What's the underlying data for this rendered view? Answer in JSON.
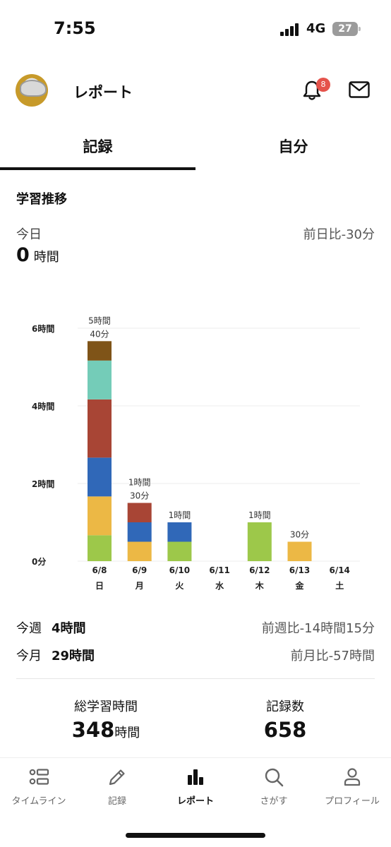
{
  "status_bar": {
    "time": "7:55",
    "network": "4G",
    "battery": "27"
  },
  "header": {
    "title": "レポート",
    "notification_count": "8"
  },
  "tabs": [
    {
      "label": "記録",
      "active": true
    },
    {
      "label": "自分",
      "active": false
    }
  ],
  "section": {
    "title": "学習推移",
    "today_label": "今日",
    "today_value": "0",
    "today_unit": "時間",
    "today_compare": "前日比-30分"
  },
  "chart_data": {
    "type": "bar",
    "stacked": true,
    "unit": "minutes",
    "ylim": [
      0,
      360
    ],
    "y_ticks": [
      {
        "value": 0,
        "label": "0分"
      },
      {
        "value": 120,
        "label": "2時間"
      },
      {
        "value": 240,
        "label": "4時間"
      },
      {
        "value": 360,
        "label": "6時間"
      }
    ],
    "grid": true,
    "categories": [
      {
        "date": "6/8",
        "day": "日"
      },
      {
        "date": "6/9",
        "day": "月"
      },
      {
        "date": "6/10",
        "day": "火"
      },
      {
        "date": "6/11",
        "day": "水"
      },
      {
        "date": "6/12",
        "day": "木"
      },
      {
        "date": "6/13",
        "day": "金"
      },
      {
        "date": "6/14",
        "day": "土"
      }
    ],
    "series": [
      {
        "color": "#9dc84a",
        "values": [
          40,
          0,
          30,
          0,
          60,
          0,
          0
        ]
      },
      {
        "color": "#ecb845",
        "values": [
          60,
          30,
          0,
          0,
          0,
          30,
          0
        ]
      },
      {
        "color": "#3068b8",
        "values": [
          60,
          30,
          30,
          0,
          0,
          0,
          0
        ]
      },
      {
        "color": "#a84535",
        "values": [
          90,
          30,
          0,
          0,
          0,
          0,
          0
        ]
      },
      {
        "color": "#74ccb8",
        "values": [
          60,
          0,
          0,
          0,
          0,
          0,
          0
        ]
      },
      {
        "color": "#7f5418",
        "values": [
          30,
          0,
          0,
          0,
          0,
          0,
          0
        ]
      }
    ],
    "totals": [
      [
        "5時間",
        "40分"
      ],
      [
        "1時間",
        "30分"
      ],
      [
        "1時間"
      ],
      [],
      [
        "1時間"
      ],
      [
        "30分"
      ],
      []
    ]
  },
  "summary": {
    "week_label": "今週",
    "week_value": "4時間",
    "week_compare": "前週比-14時間15分",
    "month_label": "今月",
    "month_value": "29時間",
    "month_compare": "前月比-57時間"
  },
  "totals": {
    "study_label": "総学習時間",
    "study_value": "348",
    "study_unit": "時間",
    "records_label": "記録数",
    "records_value": "658"
  },
  "bottom_nav": [
    {
      "label": "タイムライン",
      "icon": "list-icon",
      "active": false
    },
    {
      "label": "記録",
      "icon": "pencil-icon",
      "active": false
    },
    {
      "label": "レポート",
      "icon": "bar-chart-icon",
      "active": true
    },
    {
      "label": "さがす",
      "icon": "search-icon",
      "active": false
    },
    {
      "label": "プロフィール",
      "icon": "person-icon",
      "active": false
    }
  ]
}
